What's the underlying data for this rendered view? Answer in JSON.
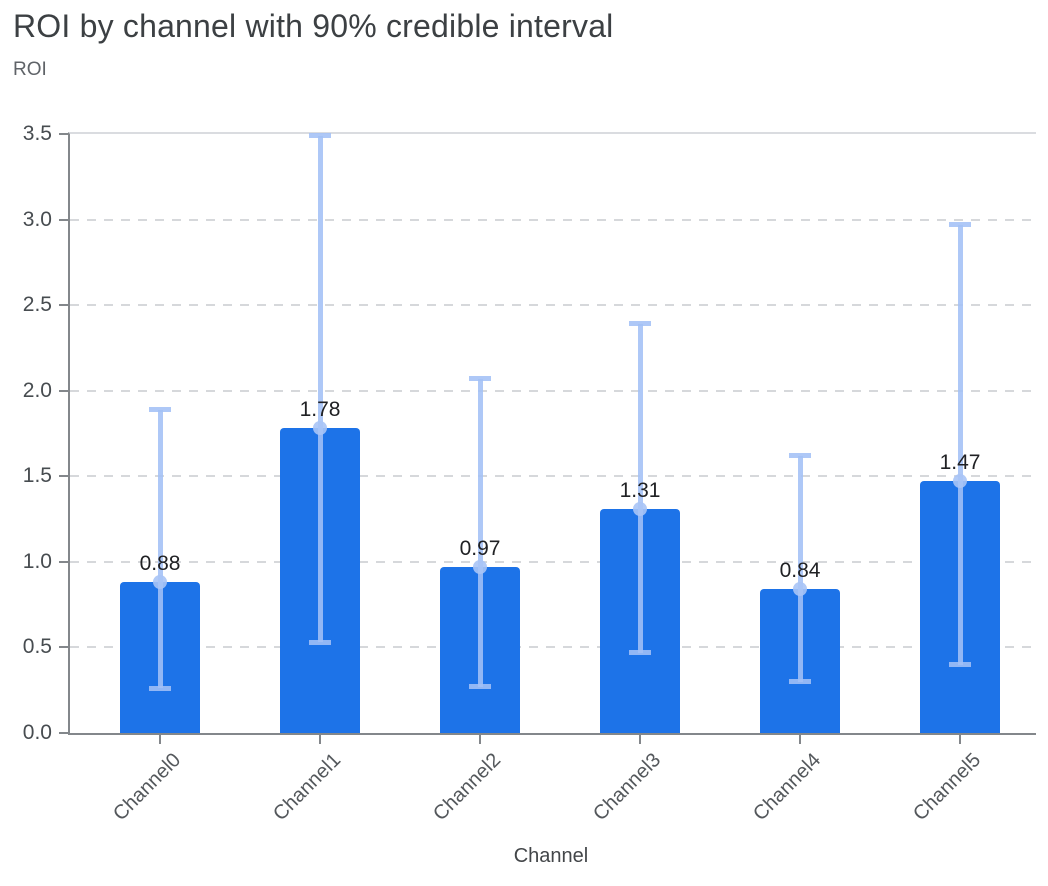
{
  "chart_data": {
    "type": "bar",
    "title": "ROI by channel with 90% credible interval",
    "xlabel": "Channel",
    "ylabel": "ROI",
    "categories": [
      "Channel0",
      "Channel1",
      "Channel2",
      "Channel3",
      "Channel4",
      "Channel5"
    ],
    "values": [
      0.88,
      1.78,
      0.97,
      1.31,
      0.84,
      1.47
    ],
    "value_labels": [
      "0.88",
      "1.78",
      "0.97",
      "1.31",
      "0.84",
      "1.47"
    ],
    "error_low": [
      0.26,
      0.53,
      0.27,
      0.47,
      0.3,
      0.4
    ],
    "error_high": [
      1.89,
      3.49,
      2.07,
      2.39,
      1.62,
      2.97
    ],
    "ylim": [
      0,
      3.5
    ],
    "yticks": [
      {
        "label": "0.0",
        "value": 0.0
      },
      {
        "label": "0.5",
        "value": 0.5
      },
      {
        "label": "1.0",
        "value": 1.0
      },
      {
        "label": "1.5",
        "value": 1.5
      },
      {
        "label": "2.0",
        "value": 2.0
      },
      {
        "label": "2.5",
        "value": 2.5
      },
      {
        "label": "3.0",
        "value": 3.0
      },
      {
        "label": "3.5",
        "value": 3.5
      }
    ],
    "grid": "horizontal-dashed",
    "legend": "none",
    "colors": {
      "bar": "#1d73e8",
      "error_bar": "#a3c0f6",
      "gridline": "#d6d8db",
      "axis": "#83878b",
      "title_text": "#3c4043",
      "tick_text": "#474c50",
      "value_text": "#202124",
      "axis_label_text": "#5f6368"
    }
  }
}
